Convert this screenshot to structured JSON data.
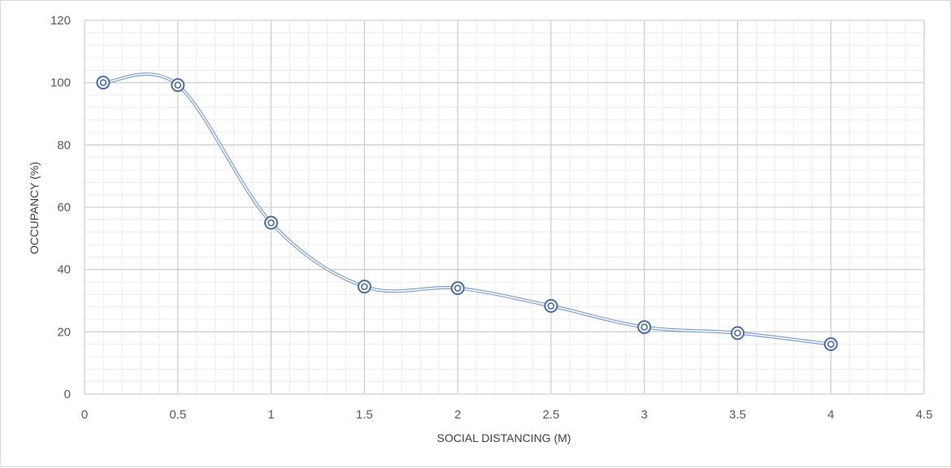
{
  "chart_data": {
    "type": "scatter",
    "title": "",
    "xlabel": "SOCIAL DISTANCING (M)",
    "ylabel": "OCCUPANCY (%)",
    "xlim": [
      0,
      4.5
    ],
    "ylim": [
      0,
      120
    ],
    "x_ticks": [
      "0",
      "0.5",
      "1",
      "1.5",
      "2",
      "2.5",
      "3",
      "3.5",
      "4",
      "4.5"
    ],
    "y_ticks": [
      "0",
      "20",
      "40",
      "60",
      "80",
      "100",
      "120"
    ],
    "grid": true,
    "minor_grid": true,
    "line_style": "smoothed",
    "series": [
      {
        "color": "#7f9fd0",
        "marker_color": "#4a6da7",
        "x": [
          0.1,
          0.5,
          1,
          1.5,
          2,
          2.5,
          3,
          3.5,
          4
        ],
        "y": [
          100,
          99.2,
          55,
          34.5,
          34,
          28.3,
          21.5,
          19.6,
          16
        ]
      }
    ]
  }
}
